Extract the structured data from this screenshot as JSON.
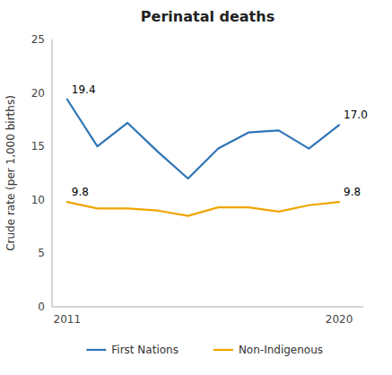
{
  "chart_data": {
    "type": "line",
    "title": "Perinatal deaths",
    "y_label": "Crude rate (per 1,000 births)",
    "x": [
      2011,
      2012,
      2013,
      2014,
      2015,
      2016,
      2017,
      2018,
      2019,
      2020
    ],
    "series": [
      {
        "name": "First Nations",
        "color": "#2E75B6",
        "values": [
          19.4,
          15.0,
          17.2,
          14.5,
          12.0,
          14.8,
          16.3,
          16.5,
          14.8,
          17.0
        ]
      },
      {
        "name": "Non-Indigenous",
        "color": "#F0A500",
        "values": [
          9.8,
          9.2,
          9.2,
          9.0,
          8.5,
          9.3,
          9.3,
          8.9,
          9.5,
          9.8
        ]
      }
    ],
    "annotations": [
      {
        "text": "19.4",
        "x": 2011,
        "y": 19.4
      },
      {
        "text": "17.0",
        "x": 2020,
        "y": 17.0
      },
      {
        "text": "9.8",
        "x": 2011,
        "y": 9.8
      },
      {
        "text": "9.8",
        "x": 2020,
        "y": 9.8
      }
    ],
    "xlim": [
      2010.5,
      2020.8
    ],
    "xticks": [
      2011,
      2020
    ],
    "ylim": [
      0,
      25
    ],
    "yticks": [
      0,
      5,
      10,
      15,
      20,
      25
    ],
    "grid": false,
    "legend": "bottom"
  }
}
